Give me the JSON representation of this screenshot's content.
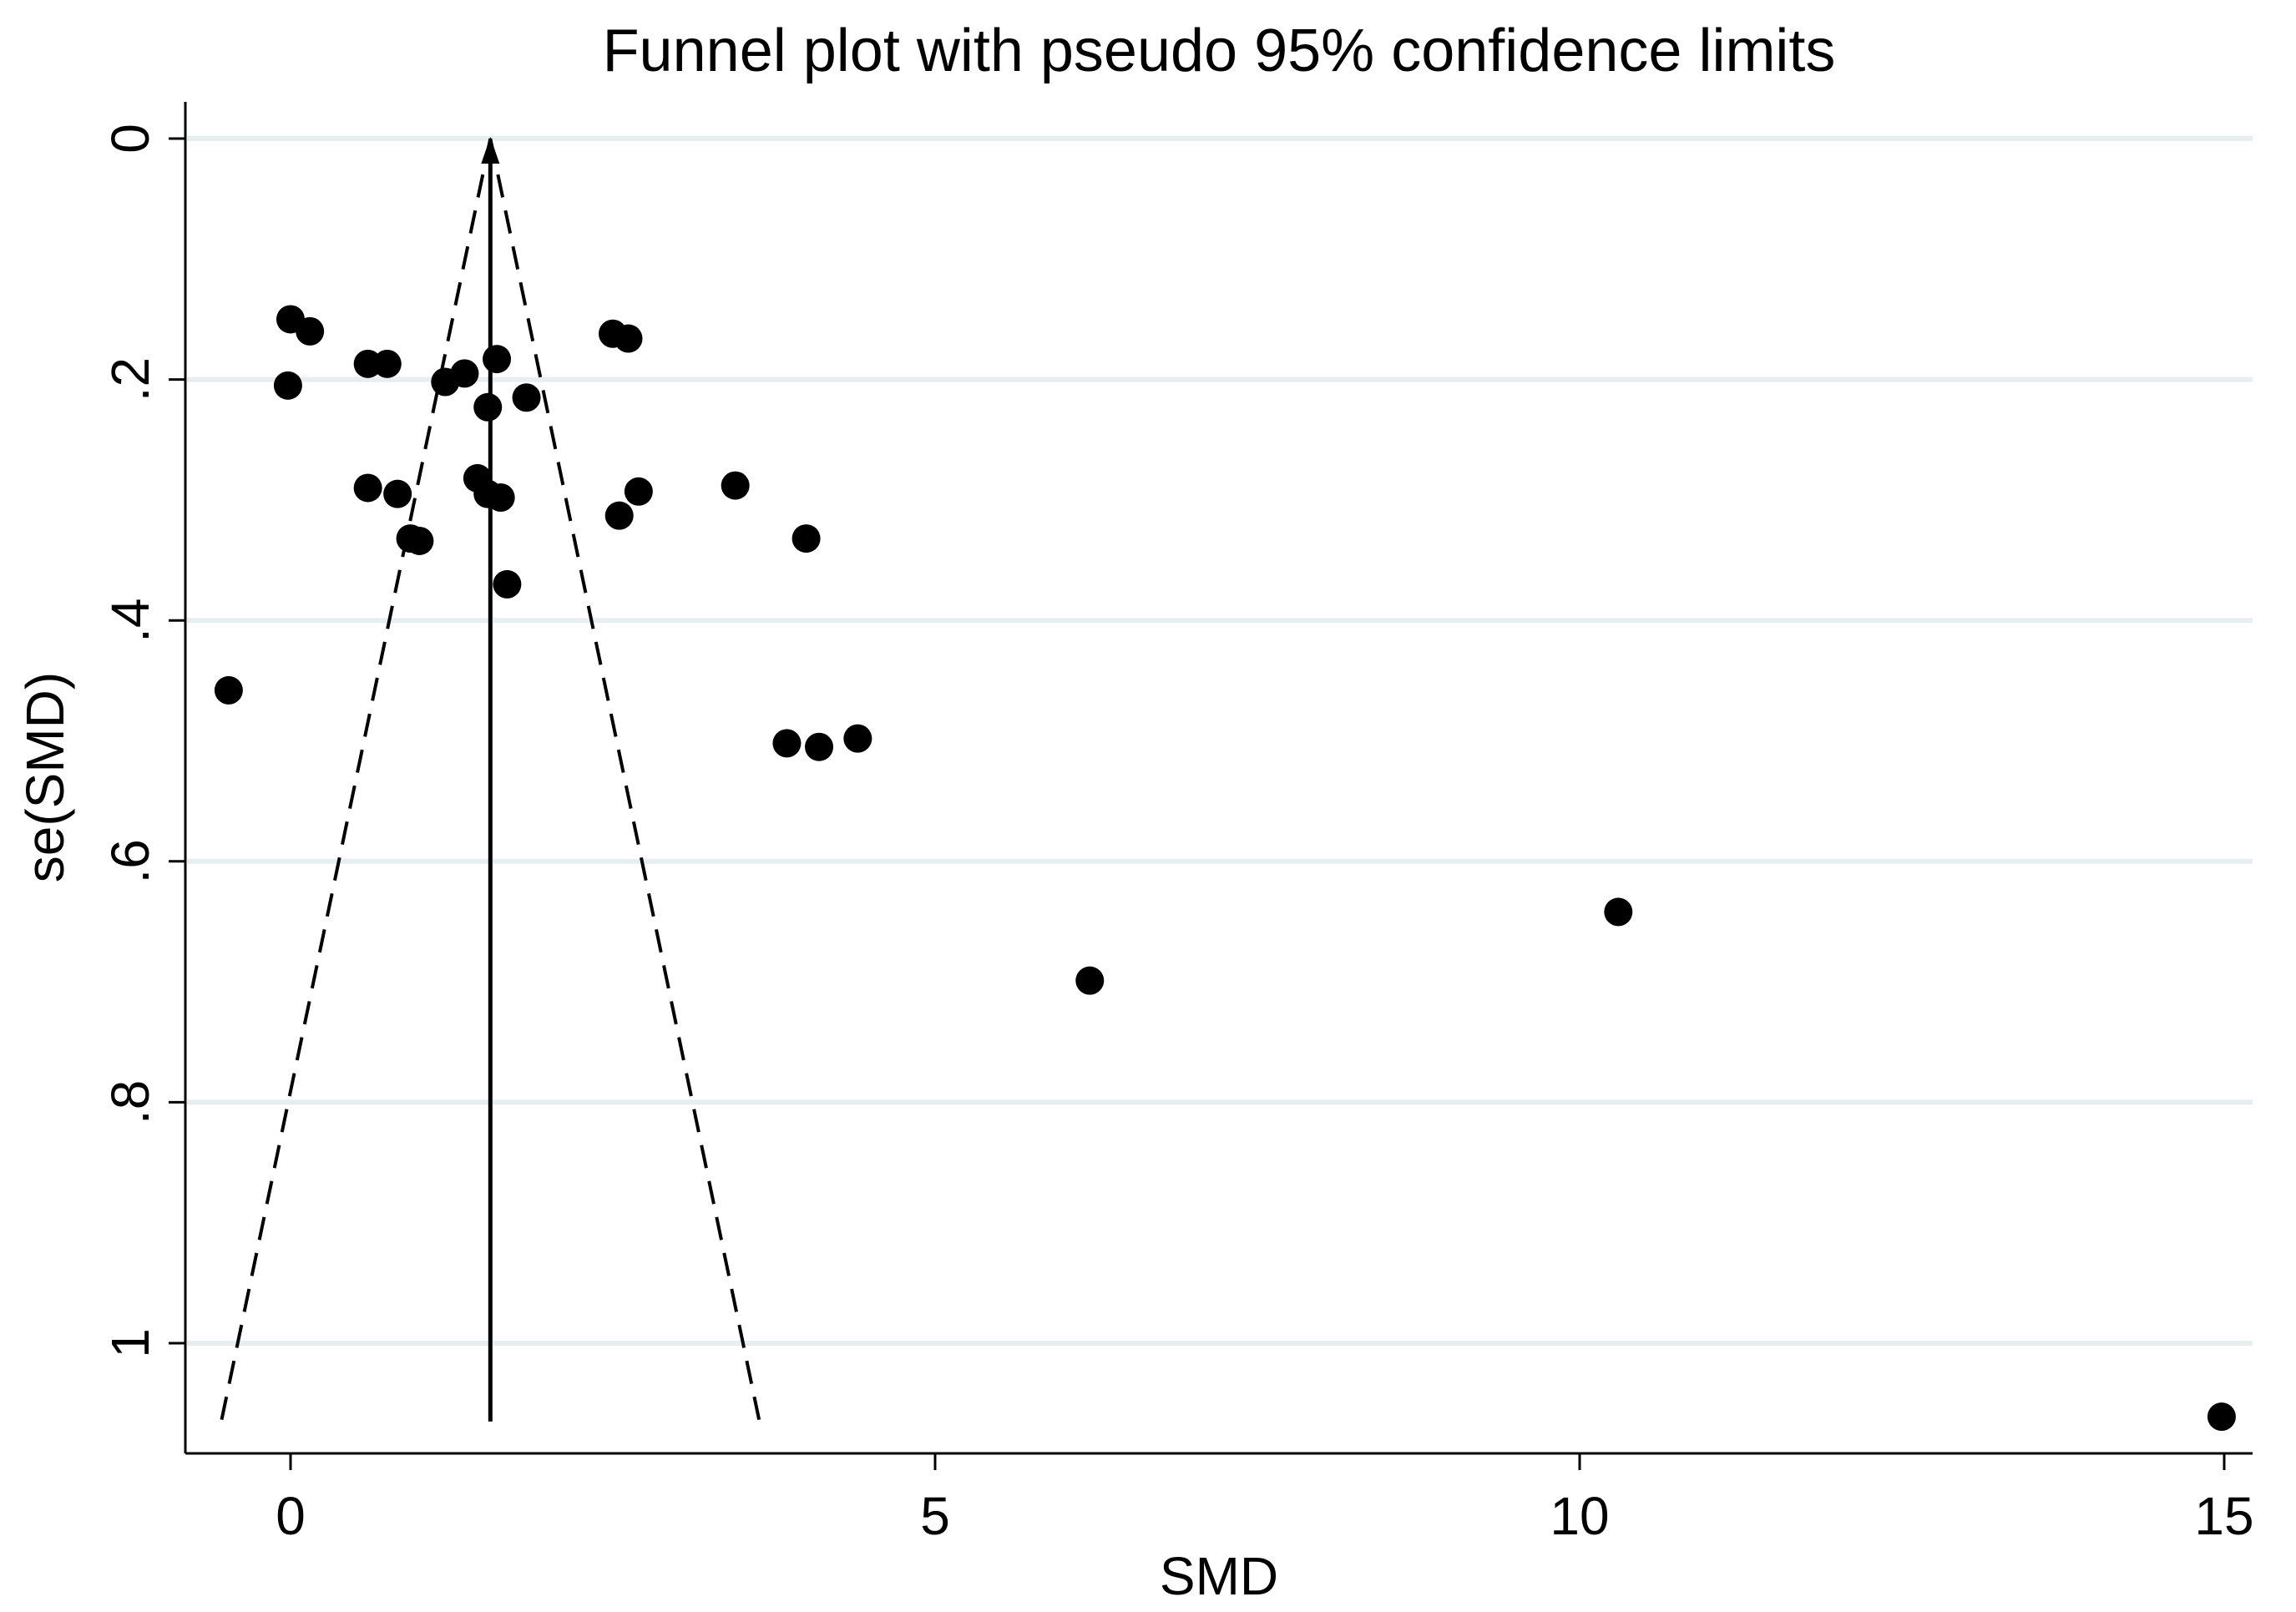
{
  "chart_data": {
    "type": "scatter",
    "title": "Funnel plot with pseudo 95% confidence limits",
    "xlabel": "SMD",
    "ylabel": "se(SMD)",
    "xlim": [
      -0.8,
      15.2
    ],
    "ylim": [
      -0.03,
      1.07
    ],
    "y_reversed": true,
    "xticks": [
      {
        "value": 0,
        "label": "0"
      },
      {
        "value": 5,
        "label": "5"
      },
      {
        "value": 10,
        "label": "10"
      },
      {
        "value": 15,
        "label": "15"
      }
    ],
    "yticks": [
      {
        "value": 0,
        "label": "0"
      },
      {
        "value": 0.2,
        "label": ".2"
      },
      {
        "value": 0.4,
        "label": ".4"
      },
      {
        "value": 0.6,
        "label": ".6"
      },
      {
        "value": 0.8,
        "label": ".8"
      },
      {
        "value": 1.0,
        "label": "1"
      }
    ],
    "grid": "horizontal",
    "pooled_effect": 1.55,
    "funnel_se_max": 1.065,
    "ci_multiplier": 1.96,
    "points": [
      {
        "x": 0.0,
        "y": 0.15
      },
      {
        "x": 0.15,
        "y": 0.16
      },
      {
        "x": -0.02,
        "y": 0.205
      },
      {
        "x": 0.6,
        "y": 0.187
      },
      {
        "x": 0.75,
        "y": 0.187
      },
      {
        "x": 1.2,
        "y": 0.202
      },
      {
        "x": 1.35,
        "y": 0.195
      },
      {
        "x": 1.6,
        "y": 0.183
      },
      {
        "x": 1.53,
        "y": 0.223
      },
      {
        "x": 1.83,
        "y": 0.215
      },
      {
        "x": 2.5,
        "y": 0.162
      },
      {
        "x": 2.62,
        "y": 0.166
      },
      {
        "x": 0.6,
        "y": 0.29
      },
      {
        "x": 0.83,
        "y": 0.295
      },
      {
        "x": 1.45,
        "y": 0.282
      },
      {
        "x": 1.53,
        "y": 0.295
      },
      {
        "x": 1.63,
        "y": 0.298
      },
      {
        "x": 0.93,
        "y": 0.332
      },
      {
        "x": 1.0,
        "y": 0.334
      },
      {
        "x": 2.55,
        "y": 0.313
      },
      {
        "x": 2.7,
        "y": 0.293
      },
      {
        "x": 3.45,
        "y": 0.288
      },
      {
        "x": 4.0,
        "y": 0.332
      },
      {
        "x": 1.68,
        "y": 0.37
      },
      {
        "x": -0.48,
        "y": 0.458
      },
      {
        "x": 3.85,
        "y": 0.502
      },
      {
        "x": 4.1,
        "y": 0.505
      },
      {
        "x": 4.4,
        "y": 0.498
      },
      {
        "x": 10.3,
        "y": 0.642
      },
      {
        "x": 6.2,
        "y": 0.699
      },
      {
        "x": 14.98,
        "y": 1.061
      }
    ]
  }
}
